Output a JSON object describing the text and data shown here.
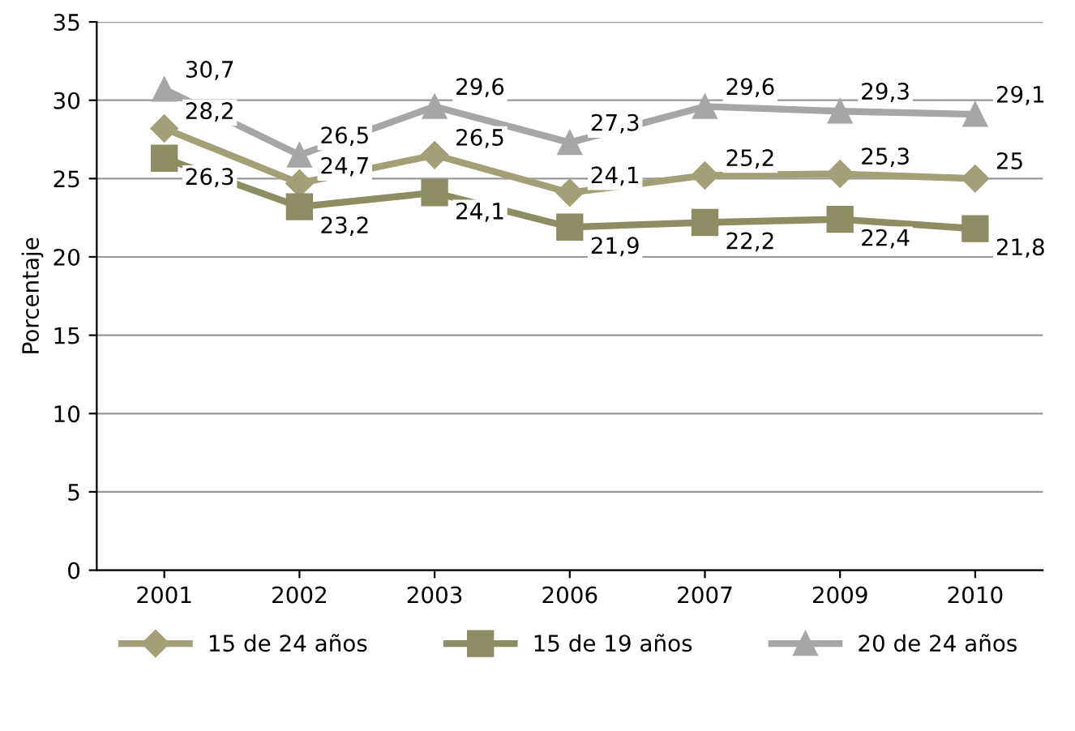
{
  "chart_data": {
    "type": "line",
    "ylabel": "Porcentaje",
    "categories": [
      "2001",
      "2002",
      "2003",
      "2006",
      "2007",
      "2009",
      "2010"
    ],
    "series": [
      {
        "name": "15 de 24 años",
        "color": "#a3a078",
        "marker": "diamond",
        "values": [
          28.2,
          24.7,
          26.5,
          24.1,
          25.2,
          25.3,
          25
        ],
        "value_labels": [
          "28,2",
          "24,7",
          "26,5",
          "24,1",
          "25,2",
          "25,3",
          "25"
        ]
      },
      {
        "name": "15 de 19 años",
        "color": "#8e8c62",
        "marker": "square",
        "values": [
          26.3,
          23.2,
          24.1,
          21.9,
          22.2,
          22.4,
          21.8
        ],
        "value_labels": [
          "26,3",
          "23,2",
          "24,1",
          "21,9",
          "22,2",
          "22,4",
          "21,8"
        ]
      },
      {
        "name": "20 de 24 años",
        "color": "#a6a6a8",
        "marker": "triangle",
        "values": [
          30.7,
          26.5,
          29.6,
          27.3,
          29.6,
          29.3,
          29.1
        ],
        "value_labels": [
          "30,7",
          "26,5",
          "29,6",
          "27,3",
          "29,6",
          "29,3",
          "29,1"
        ]
      }
    ],
    "ylim": [
      0,
      35
    ],
    "yticks": [
      0,
      5,
      10,
      15,
      20,
      25,
      30,
      35
    ],
    "grid": "y",
    "legend": "bottom"
  }
}
